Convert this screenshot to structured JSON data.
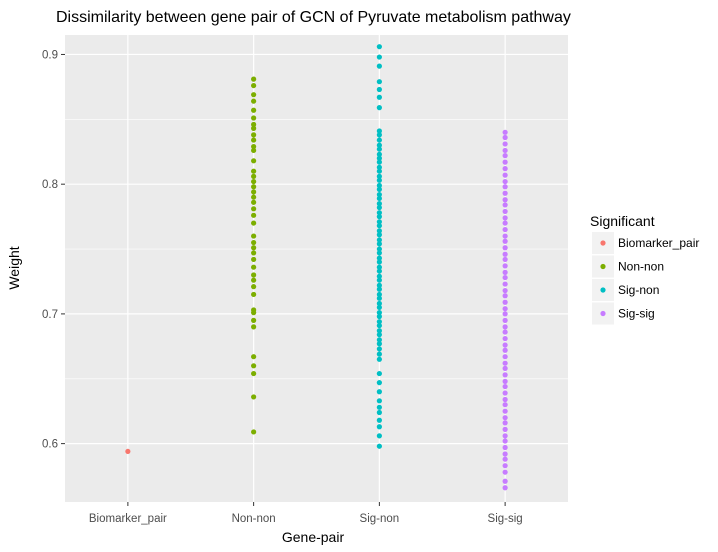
{
  "chart_data": {
    "type": "scatter",
    "title": "Dissimilarity between gene pair of GCN of Pyruvate metabolism pathway",
    "xlabel": "Gene-pair",
    "ylabel": "Weight",
    "categories": [
      "Biomarker_pair",
      "Non-non",
      "Sig-non",
      "Sig-sig"
    ],
    "ylim": [
      0.555,
      0.915
    ],
    "yticks": [
      "0.6",
      "0.7",
      "0.8",
      "0.9"
    ],
    "grid": true,
    "legend": {
      "title": "Significant",
      "position": "right",
      "entries": [
        "Biomarker_pair",
        "Non-non",
        "Sig-non",
        "Sig-sig"
      ]
    },
    "colors": {
      "Biomarker_pair": "#F8766D",
      "Non-non": "#7CAE00",
      "Sig-non": "#00BFC4",
      "Sig-sig": "#C77CFF",
      "panel": "#EBEBEB",
      "grid": "#FFFFFF"
    },
    "series": [
      {
        "name": "Biomarker_pair",
        "category": "Biomarker_pair",
        "values": [
          0.594
        ]
      },
      {
        "name": "Non-non",
        "category": "Non-non",
        "values": [
          0.881,
          0.876,
          0.869,
          0.864,
          0.857,
          0.851,
          0.846,
          0.843,
          0.838,
          0.834,
          0.829,
          0.826,
          0.818,
          0.81,
          0.806,
          0.802,
          0.798,
          0.794,
          0.79,
          0.786,
          0.781,
          0.776,
          0.77,
          0.76,
          0.755,
          0.751,
          0.747,
          0.742,
          0.736,
          0.73,
          0.726,
          0.721,
          0.715,
          0.703,
          0.701,
          0.695,
          0.69,
          0.667,
          0.66,
          0.654,
          0.636,
          0.609
        ]
      },
      {
        "name": "Sig-non",
        "category": "Sig-non",
        "values": [
          0.906,
          0.898,
          0.891,
          0.879,
          0.873,
          0.867,
          0.859,
          0.841,
          0.838,
          0.834,
          0.83,
          0.827,
          0.823,
          0.82,
          0.817,
          0.813,
          0.81,
          0.806,
          0.803,
          0.799,
          0.796,
          0.792,
          0.789,
          0.785,
          0.782,
          0.778,
          0.775,
          0.771,
          0.768,
          0.764,
          0.761,
          0.757,
          0.754,
          0.75,
          0.747,
          0.743,
          0.74,
          0.736,
          0.733,
          0.729,
          0.726,
          0.722,
          0.719,
          0.715,
          0.712,
          0.708,
          0.705,
          0.701,
          0.698,
          0.694,
          0.691,
          0.687,
          0.684,
          0.68,
          0.677,
          0.673,
          0.669,
          0.665,
          0.654,
          0.647,
          0.64,
          0.633,
          0.628,
          0.624,
          0.618,
          0.613,
          0.606,
          0.598
        ]
      },
      {
        "name": "Sig-sig",
        "category": "Sig-sig",
        "values": [
          0.84,
          0.836,
          0.831,
          0.826,
          0.822,
          0.817,
          0.812,
          0.807,
          0.802,
          0.798,
          0.793,
          0.788,
          0.784,
          0.779,
          0.774,
          0.77,
          0.765,
          0.76,
          0.756,
          0.751,
          0.746,
          0.742,
          0.737,
          0.732,
          0.728,
          0.723,
          0.718,
          0.714,
          0.709,
          0.704,
          0.7,
          0.695,
          0.69,
          0.686,
          0.681,
          0.676,
          0.672,
          0.667,
          0.662,
          0.658,
          0.653,
          0.648,
          0.644,
          0.639,
          0.634,
          0.63,
          0.625,
          0.62,
          0.616,
          0.611,
          0.606,
          0.602,
          0.597,
          0.592,
          0.588,
          0.583,
          0.578,
          0.571,
          0.566
        ]
      }
    ]
  }
}
